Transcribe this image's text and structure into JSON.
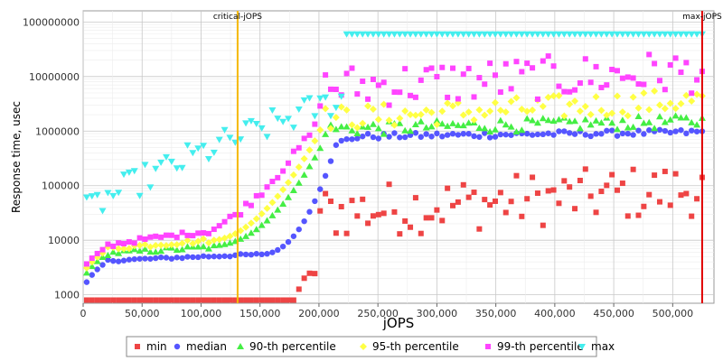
{
  "chart_data": {
    "type": "scatter",
    "xlabel": "jOPS",
    "ylabel": "Response time, usec",
    "xlim": [
      0,
      535000
    ],
    "ylim": [
      700,
      160000000
    ],
    "yscale": "log",
    "grid": true,
    "legend_position": "bottom",
    "x_ticks": [
      0,
      50000,
      100000,
      150000,
      200000,
      250000,
      300000,
      350000,
      400000,
      450000,
      500000
    ],
    "x_tick_labels": [
      "0",
      "50,000",
      "100,000",
      "150,000",
      "200,000",
      "250,000",
      "300,000",
      "350,000",
      "400,000",
      "450,000",
      "500,000"
    ],
    "y_ticks": [
      1000,
      10000,
      100000,
      1000000,
      10000000,
      100000000
    ],
    "y_tick_labels": [
      "1000",
      "10000",
      "100000",
      "1000000",
      "10000000",
      "100000000"
    ],
    "markers": [
      {
        "label": "critical-jOPS",
        "x": 131000,
        "color": "#f5b800"
      },
      {
        "label": "max-jOPS",
        "x": 525000,
        "color": "#e00000"
      }
    ],
    "series": [
      {
        "name": "min",
        "color": "#ee4444",
        "shape": "square",
        "x_start": 3000,
        "x_step": 4500,
        "count": 117
      },
      {
        "name": "median",
        "color": "#5555ff",
        "shape": "circle",
        "x_start": 3000,
        "x_step": 4500,
        "count": 117
      },
      {
        "name": "90-th percentile",
        "color": "#44ee44",
        "shape": "triangle-up",
        "x_start": 3000,
        "x_step": 4500,
        "count": 117
      },
      {
        "name": "95-th percentile",
        "color": "#ffff44",
        "shape": "diamond",
        "x_start": 3000,
        "x_step": 4500,
        "count": 117
      },
      {
        "name": "99-th percentile",
        "color": "#ff44ff",
        "shape": "square",
        "x_start": 3000,
        "x_step": 4500,
        "count": 117
      },
      {
        "name": "max",
        "color": "#44eeee",
        "shape": "triangle-down",
        "x_start": 3000,
        "x_step": 4500,
        "count": 117
      }
    ]
  }
}
